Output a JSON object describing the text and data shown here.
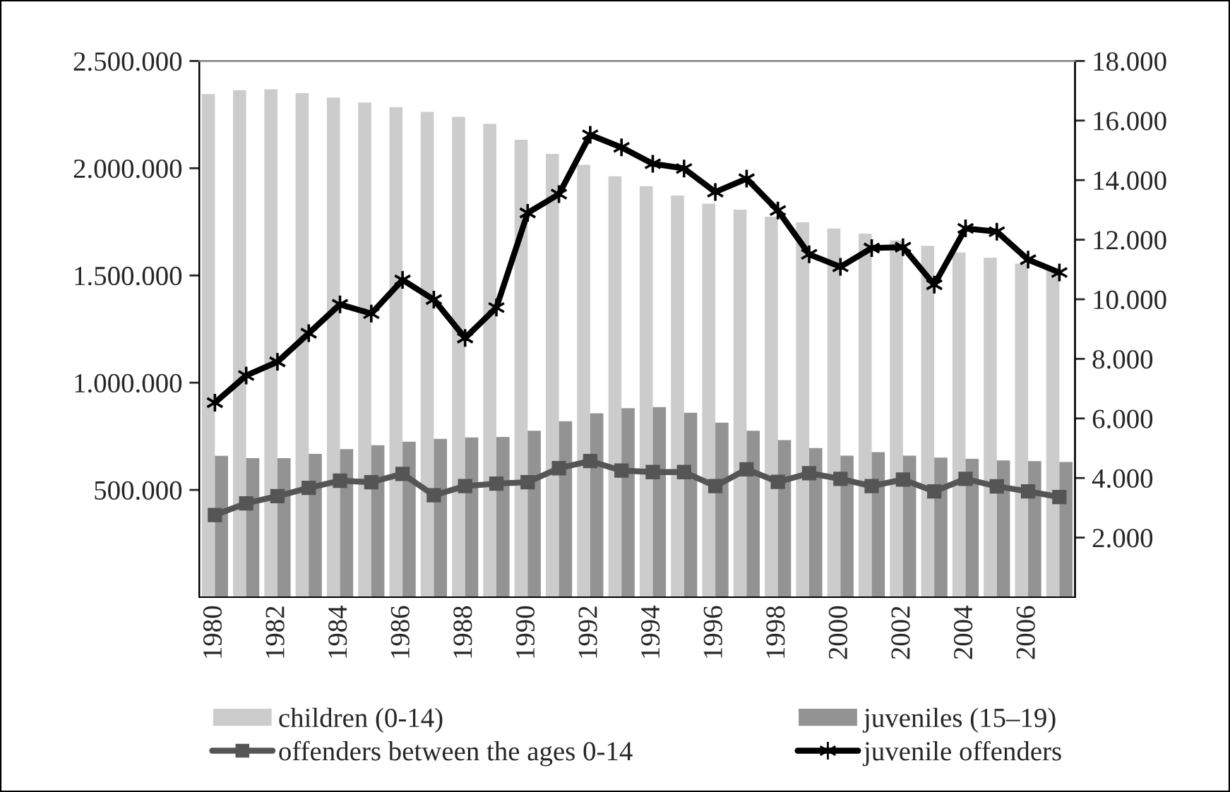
{
  "chart_data": {
    "type": "bar",
    "categories": [
      "1980",
      null,
      "1982",
      null,
      "1984",
      null,
      "1986",
      null,
      "1988",
      null,
      "1990",
      null,
      "1992",
      null,
      "1994",
      null,
      "1996",
      null,
      "1998",
      null,
      "2000",
      null,
      "2002",
      null,
      "2004",
      null,
      "2006",
      null
    ],
    "series": [
      {
        "name": "children (0-14)",
        "color": "#cccccc",
        "values": [
          2346000,
          2364000,
          2368000,
          2350000,
          2329000,
          2306000,
          2285000,
          2263000,
          2240000,
          2207000,
          2133000,
          2067000,
          2016000,
          1962000,
          1916000,
          1873000,
          1835000,
          1807000,
          1774000,
          1748000,
          1719000,
          1695000,
          1664000,
          1638000,
          1607000,
          1583000,
          1555000,
          1533000
        ]
      },
      {
        "name": "juveniles (15–19)",
        "color": "#939393",
        "values": [
          659000,
          648000,
          648000,
          668000,
          690000,
          708000,
          725000,
          738000,
          745000,
          747000,
          776000,
          820000,
          857000,
          881000,
          886000,
          860000,
          814000,
          776000,
          732000,
          695000,
          660000,
          676000,
          660000,
          651000,
          645000,
          638000,
          634000,
          630000
        ]
      },
      {
        "name": "offenders between the ages 0-14",
        "type": "line",
        "axis": "y2",
        "marker": "square",
        "color": "#555555",
        "values": [
          2760,
          3150,
          3390,
          3670,
          3910,
          3860,
          4140,
          3420,
          3730,
          3810,
          3860,
          4330,
          4570,
          4250,
          4200,
          4200,
          3730,
          4290,
          3870,
          4160,
          3970,
          3730,
          3950,
          3550,
          3970,
          3720,
          3550,
          3360
        ]
      },
      {
        "name": "juvenile offenders",
        "type": "line",
        "axis": "y2",
        "marker": "cross",
        "color": "#000000",
        "values": [
          6530,
          7440,
          7900,
          8860,
          9830,
          9520,
          10650,
          9990,
          8700,
          9720,
          12900,
          13530,
          15520,
          15100,
          14550,
          14390,
          13600,
          14050,
          12980,
          11510,
          11090,
          11720,
          11750,
          10490,
          12380,
          12270,
          11330,
          10900
        ]
      }
    ],
    "ylim": [
      0,
      2500000
    ],
    "yticks": [
      {
        "value": 500000,
        "label": "500.000"
      },
      {
        "value": 1000000,
        "label": "1.000.000"
      },
      {
        "value": 1500000,
        "label": "1.500.000"
      },
      {
        "value": 2000000,
        "label": "2.000.000"
      },
      {
        "value": 2500000,
        "label": "2.500.000"
      }
    ],
    "y2lim": [
      0,
      18000
    ],
    "y2ticks": [
      {
        "value": 2000,
        "label": "2.000"
      },
      {
        "value": 4000,
        "label": "4.000"
      },
      {
        "value": 6000,
        "label": "6.000"
      },
      {
        "value": 8000,
        "label": "8.000"
      },
      {
        "value": 10000,
        "label": "10.000"
      },
      {
        "value": 12000,
        "label": "12.000"
      },
      {
        "value": 14000,
        "label": "14.000"
      },
      {
        "value": 16000,
        "label": "16.000"
      },
      {
        "value": 18000,
        "label": "18.000"
      }
    ],
    "grid": false,
    "legend": "bottom"
  }
}
